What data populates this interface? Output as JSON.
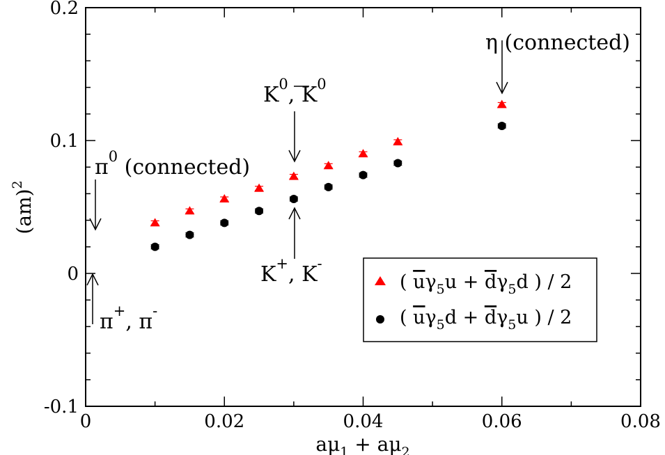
{
  "chart_data": {
    "type": "scatter",
    "xlabel": {
      "a": "aμ",
      "s1": "1",
      "b": " + aμ",
      "s2": "2"
    },
    "ylabel": {
      "base": "(am)",
      "sup": "2"
    },
    "xlim": [
      0,
      0.08
    ],
    "ylim": [
      -0.1,
      0.2
    ],
    "x_ticks": [
      0,
      0.02,
      0.04,
      0.06,
      0.08
    ],
    "x_tick_labels": [
      "0",
      "0.02",
      "0.04",
      "0.06",
      "0.08"
    ],
    "y_ticks": [
      -0.1,
      0,
      0.1,
      0.2
    ],
    "y_tick_labels": [
      "-0.1",
      "0",
      "0.1",
      "0.2"
    ],
    "series": [
      {
        "name": "( ūγ5u + d̄γ5d ) / 2",
        "marker": "triangle",
        "color": "#ff0000",
        "x": [
          0.01,
          0.015,
          0.02,
          0.025,
          0.03,
          0.035,
          0.04,
          0.045,
          0.06
        ],
        "y": [
          0.038,
          0.047,
          0.056,
          0.064,
          0.073,
          0.081,
          0.09,
          0.099,
          0.127
        ]
      },
      {
        "name": "( ūγ5d + d̄γ5u ) / 2",
        "marker": "circle",
        "color": "#000000",
        "x": [
          0.01,
          0.015,
          0.02,
          0.025,
          0.03,
          0.035,
          0.04,
          0.045,
          0.06
        ],
        "y": [
          0.02,
          0.029,
          0.038,
          0.047,
          0.056,
          0.065,
          0.074,
          0.083,
          0.111
        ]
      }
    ],
    "legend": {
      "position": "lower-right",
      "entries": [
        {
          "p1": "( ",
          "bar1": "u",
          "g1": "γ",
          "s1": "5",
          "q1": "u + ",
          "bar2": "d",
          "g2": "γ",
          "s2": "5",
          "q2": "d ) / 2"
        },
        {
          "p1": "( ",
          "bar1": "u",
          "g1": "γ",
          "s1": "5",
          "q1": "d + ",
          "bar2": "d",
          "g2": "γ",
          "s2": "5",
          "q2": "u ) / 2"
        }
      ]
    },
    "annotations": {
      "eta": {
        "sym": "η",
        "text": " (connected)"
      },
      "k0": {
        "k1": "K",
        "sup1": "0",
        "sep": ", ",
        "k2": "K",
        "sup2": "0"
      },
      "pi0": {
        "sym": "π",
        "sup": "0",
        "text": " (connected)"
      },
      "kpm": {
        "k1": "K",
        "sup1": "+",
        "sep": ", ",
        "k2": "K",
        "sup2": "-"
      },
      "pipm": {
        "p1": "π",
        "sup1": "+",
        "sep": ", ",
        "p2": "π",
        "sup2": "-"
      }
    }
  }
}
